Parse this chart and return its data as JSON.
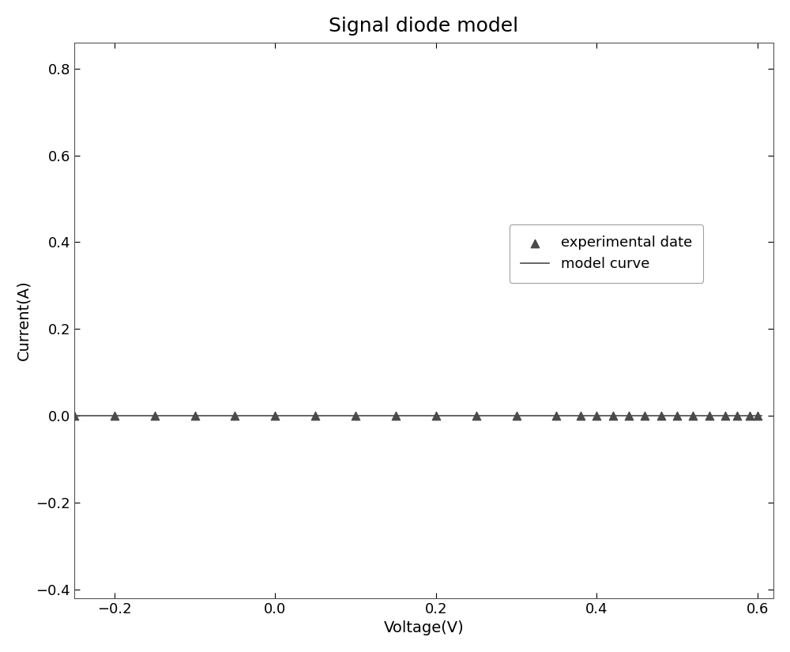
{
  "title": "Signal diode model",
  "xlabel": "Voltage(V)",
  "ylabel": "Current(A)",
  "xlim": [
    -0.25,
    0.62
  ],
  "ylim": [
    -0.42,
    0.86
  ],
  "xticks": [
    -0.2,
    0.0,
    0.2,
    0.4,
    0.6
  ],
  "yticks": [
    -0.4,
    -0.2,
    0.0,
    0.2,
    0.4,
    0.6,
    0.8
  ],
  "scatter_color": "#4a4a4a",
  "line_color": "#4a4a4a",
  "scatter_marker": "^",
  "scatter_size": 55,
  "legend_labels": [
    "experimental date",
    "model curve"
  ],
  "Iph": 0.776,
  "I0": 3.2e-10,
  "n": 1.3,
  "Rs": 0.35,
  "Rsh": 1000.0,
  "Vt": 0.02585,
  "exp_V": [
    -0.25,
    -0.2,
    -0.15,
    -0.1,
    -0.05,
    0.0,
    0.05,
    0.1,
    0.15,
    0.2,
    0.25,
    0.3,
    0.35,
    0.38,
    0.4,
    0.42,
    0.44,
    0.46,
    0.48,
    0.5,
    0.52,
    0.54,
    0.56,
    0.575,
    0.59,
    0.6
  ],
  "background_color": "#ffffff",
  "title_fontsize": 18,
  "label_fontsize": 14,
  "tick_labelsize": 13,
  "legend_fontsize": 13
}
